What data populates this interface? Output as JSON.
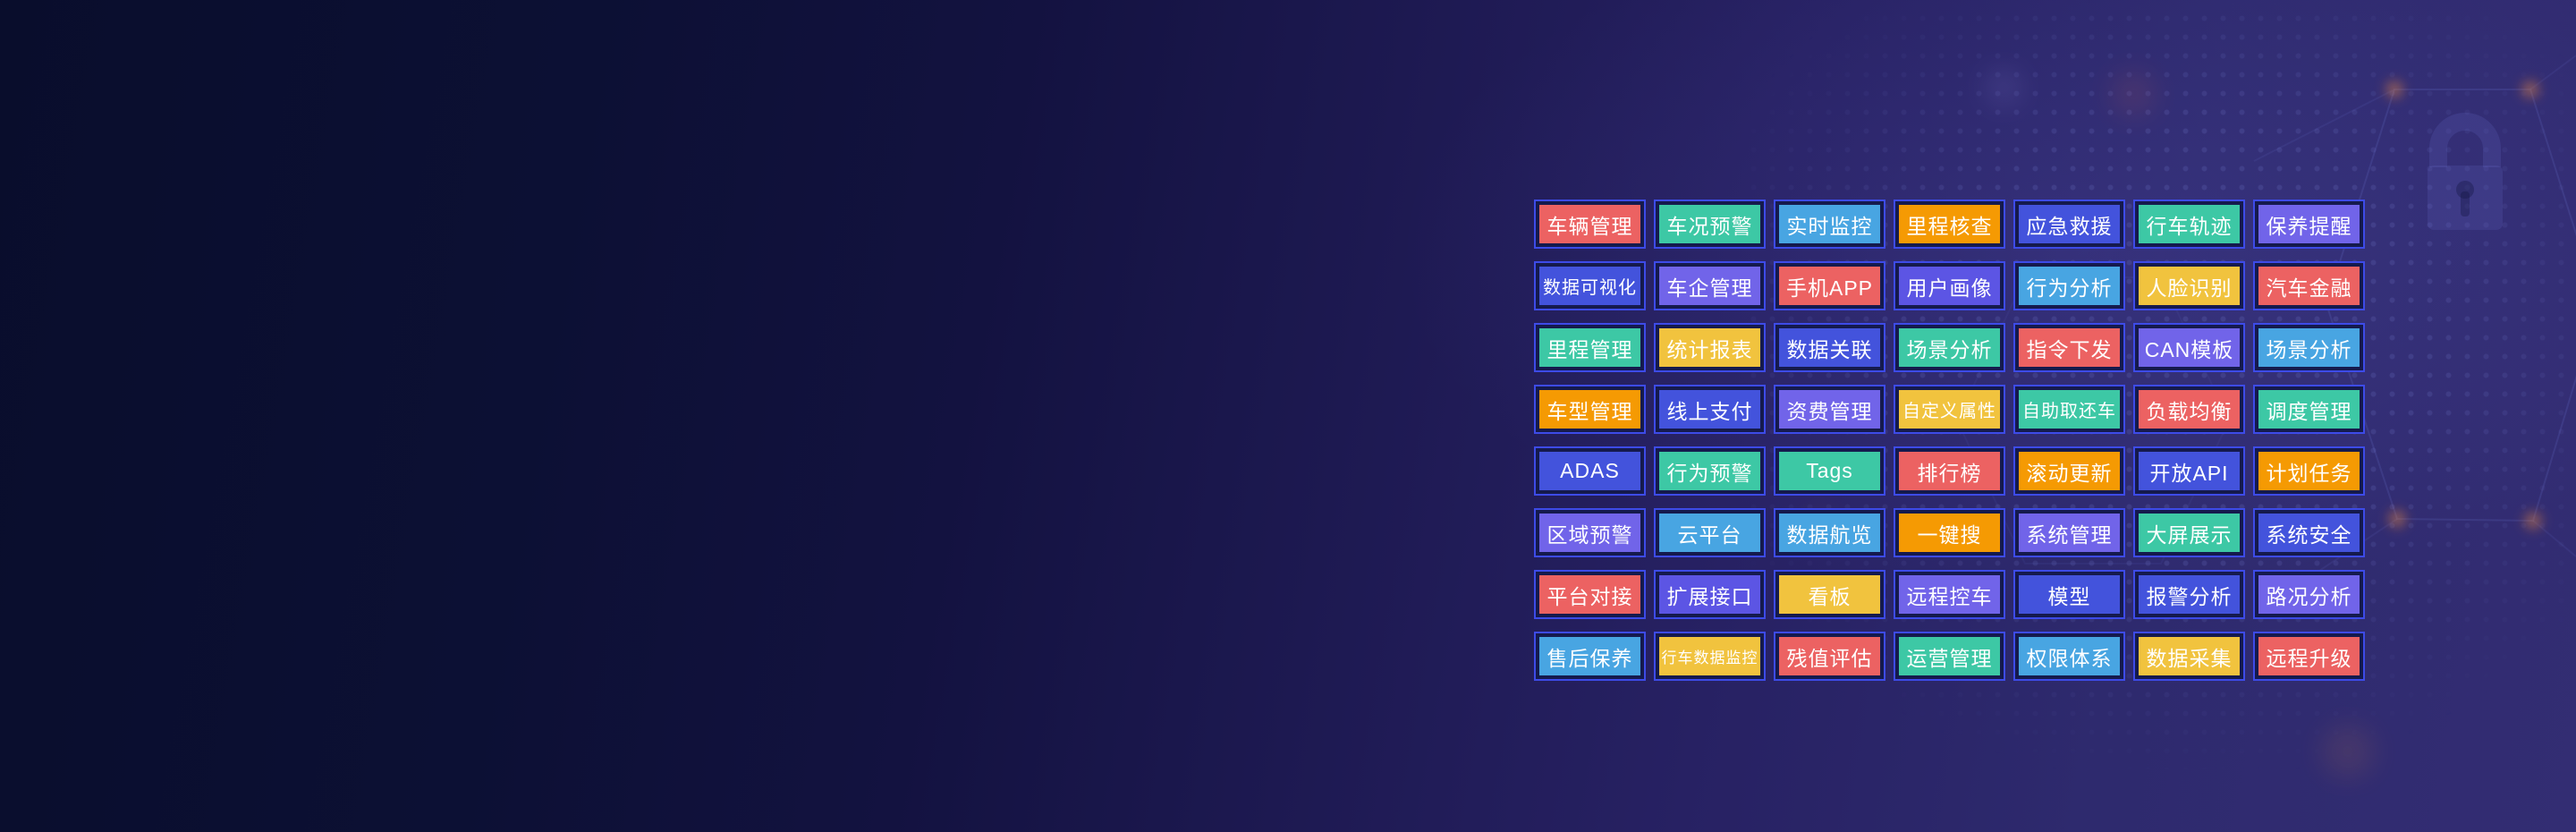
{
  "palette": {
    "red": "#ec6262",
    "teal": "#3dc8a5",
    "sky": "#48a5e2",
    "orange": "#f59a03",
    "blue": "#4353dc",
    "purple": "#7164e9",
    "violet": "#5c55e4",
    "gold": "#f1c33e"
  },
  "frame": {
    "border_color": "#3d4be8",
    "gap_color": "#151a4d",
    "text_color": "#ffffff"
  },
  "background": {
    "left_color": "#090d2c",
    "right_color": "#332d73"
  },
  "decor": {
    "watermark": "lock-icon",
    "pattern": "dot-grid",
    "shape": "hexagon-outline",
    "vertex_dot_color": "#e08a4a"
  },
  "grid": {
    "rows": [
      {
        "cells": [
          {
            "label": "车辆管理",
            "color": "red"
          },
          {
            "label": "车况预警",
            "color": "teal"
          },
          {
            "label": "实时监控",
            "color": "sky"
          },
          {
            "label": "里程核查",
            "color": "orange"
          },
          {
            "label": "应急救援",
            "color": "blue"
          },
          {
            "label": "行车轨迹",
            "color": "teal"
          },
          {
            "label": "保养提醒",
            "color": "purple"
          }
        ]
      },
      {
        "cells": [
          {
            "label": "数据可视化",
            "color": "blue"
          },
          {
            "label": "车企管理",
            "color": "purple"
          },
          {
            "label": "手机APP",
            "color": "red"
          },
          {
            "label": "用户画像",
            "color": "violet"
          },
          {
            "label": "行为分析",
            "color": "sky"
          },
          {
            "label": "人脸识别",
            "color": "gold"
          },
          {
            "label": "汽车金融",
            "color": "red"
          }
        ]
      },
      {
        "cells": [
          {
            "label": "里程管理",
            "color": "teal"
          },
          {
            "label": "统计报表",
            "color": "gold"
          },
          {
            "label": "数据关联",
            "color": "blue"
          },
          {
            "label": "场景分析",
            "color": "teal"
          },
          {
            "label": "指令下发",
            "color": "red"
          },
          {
            "label": "CAN模板",
            "color": "purple"
          },
          {
            "label": "场景分析",
            "color": "sky"
          }
        ]
      },
      {
        "cells": [
          {
            "label": "车型管理",
            "color": "orange"
          },
          {
            "label": "线上支付",
            "color": "blue"
          },
          {
            "label": "资费管理",
            "color": "purple"
          },
          {
            "label": "自定义属性",
            "color": "gold"
          },
          {
            "label": "自助取还车",
            "color": "teal"
          },
          {
            "label": "负载均衡",
            "color": "red"
          },
          {
            "label": "调度管理",
            "color": "teal"
          }
        ]
      },
      {
        "cells": [
          {
            "label": "ADAS",
            "color": "blue"
          },
          {
            "label": "行为预警",
            "color": "teal"
          },
          {
            "label": "Tags",
            "color": "teal"
          },
          {
            "label": "排行榜",
            "color": "red"
          },
          {
            "label": "滚动更新",
            "color": "orange"
          },
          {
            "label": "开放API",
            "color": "blue"
          },
          {
            "label": "计划任务",
            "color": "orange"
          }
        ]
      },
      {
        "cells": [
          {
            "label": "区域预警",
            "color": "purple"
          },
          {
            "label": "云平台",
            "color": "sky"
          },
          {
            "label": "数据航览",
            "color": "sky"
          },
          {
            "label": "一键搜",
            "color": "orange"
          },
          {
            "label": "系统管理",
            "color": "purple"
          },
          {
            "label": "大屏展示",
            "color": "teal"
          },
          {
            "label": "系统安全",
            "color": "blue"
          }
        ]
      },
      {
        "cells": [
          {
            "label": "平台对接",
            "color": "red"
          },
          {
            "label": "扩展接口",
            "color": "violet"
          },
          {
            "label": "看板",
            "color": "gold"
          },
          {
            "label": "远程控车",
            "color": "purple"
          },
          {
            "label": "模型",
            "color": "blue"
          },
          {
            "label": "报警分析",
            "color": "blue"
          },
          {
            "label": "路况分析",
            "color": "purple"
          }
        ]
      },
      {
        "cells": [
          {
            "label": "售后保养",
            "color": "sky"
          },
          {
            "label": "行车数据监控",
            "color": "gold"
          },
          {
            "label": "残值评估",
            "color": "red"
          },
          {
            "label": "运营管理",
            "color": "teal"
          },
          {
            "label": "权限体系",
            "color": "sky"
          },
          {
            "label": "数据采集",
            "color": "gold"
          },
          {
            "label": "远程升级",
            "color": "red"
          }
        ]
      }
    ]
  }
}
